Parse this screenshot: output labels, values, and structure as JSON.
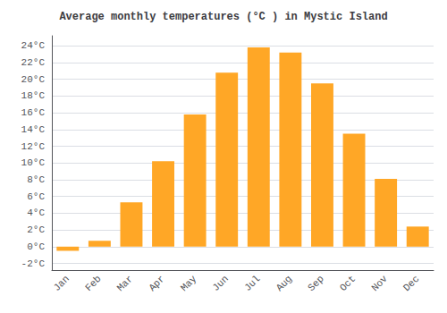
{
  "chart_data": {
    "type": "bar",
    "title": "Average monthly temperatures (°C ) in Mystic Island",
    "categories": [
      "Jan",
      "Feb",
      "Mar",
      "Apr",
      "May",
      "Jun",
      "Jul",
      "Aug",
      "Sep",
      "Oct",
      "Nov",
      "Dec"
    ],
    "values": [
      -0.5,
      0.7,
      5.3,
      10.2,
      15.8,
      20.8,
      23.8,
      23.2,
      19.5,
      13.5,
      8.1,
      2.4
    ],
    "color": "#FFA726",
    "ylim": [
      -2.8,
      25.2
    ],
    "yticks": [
      {
        "value": -2,
        "label": "-2°C"
      },
      {
        "value": 0,
        "label": "0°C"
      },
      {
        "value": 2,
        "label": "2°C"
      },
      {
        "value": 4,
        "label": "4°C"
      },
      {
        "value": 6,
        "label": "6°C"
      },
      {
        "value": 8,
        "label": "8°C"
      },
      {
        "value": 10,
        "label": "10°C"
      },
      {
        "value": 12,
        "label": "12°C"
      },
      {
        "value": 14,
        "label": "14°C"
      },
      {
        "value": 16,
        "label": "16°C"
      },
      {
        "value": 18,
        "label": "18°C"
      },
      {
        "value": 20,
        "label": "20°C"
      },
      {
        "value": 22,
        "label": "22°C"
      },
      {
        "value": 24,
        "label": "24°C"
      }
    ],
    "grid": true
  }
}
